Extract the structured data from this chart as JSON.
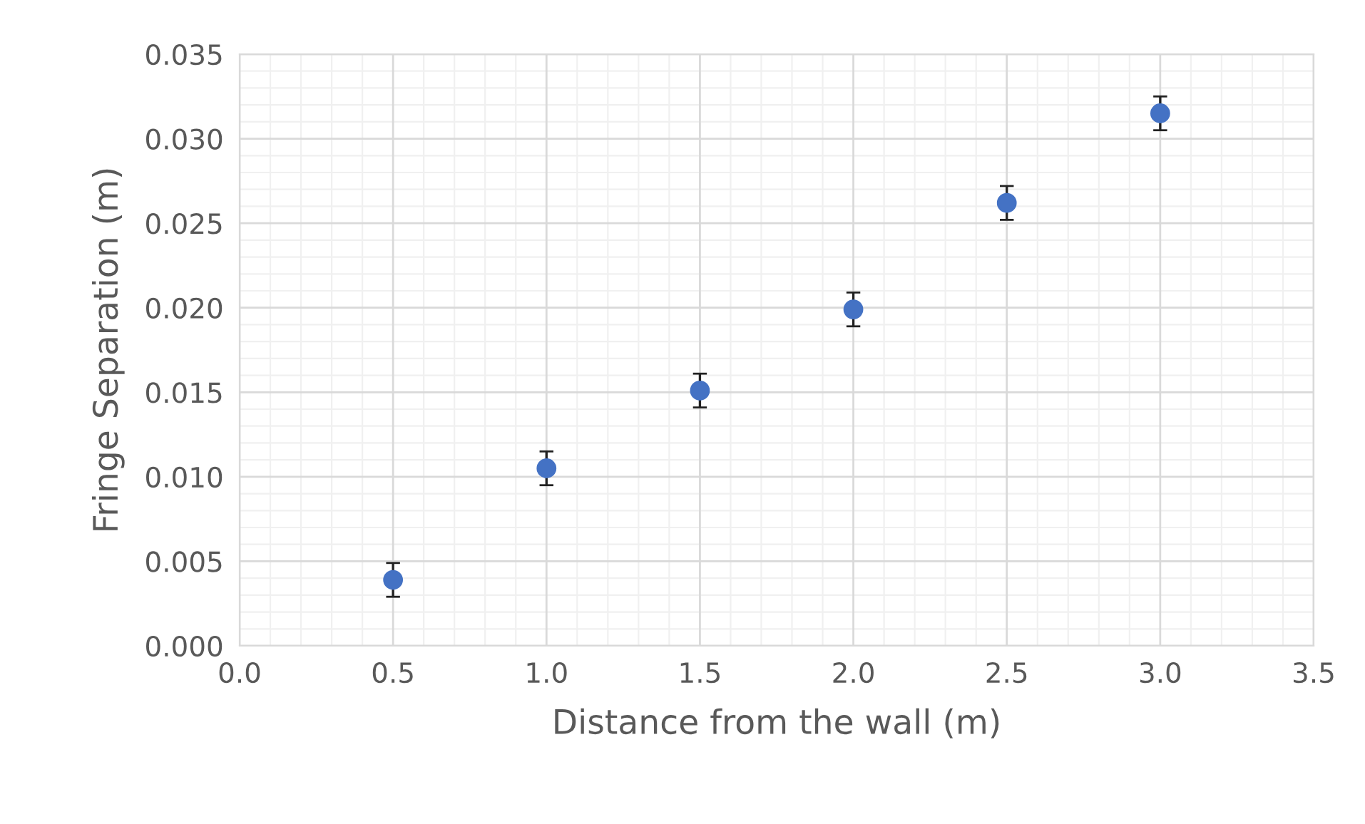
{
  "chart_data": {
    "type": "scatter",
    "xlabel": "Distance from the wall (m)",
    "ylabel": "Fringe Separation (m)",
    "x": [
      0.5,
      1.0,
      1.5,
      2.0,
      2.5,
      3.0
    ],
    "values": [
      0.0039,
      0.0105,
      0.0151,
      0.0199,
      0.0262,
      0.0315
    ],
    "errors": [
      0.001,
      0.001,
      0.001,
      0.001,
      0.001,
      0.001
    ],
    "color": "#4472c4",
    "marker": "circle",
    "xlim": [
      0.0,
      3.5
    ],
    "xticks": [
      {
        "value": 0.0,
        "label": "0.0"
      },
      {
        "value": 0.5,
        "label": "0.5"
      },
      {
        "value": 1.0,
        "label": "1.0"
      },
      {
        "value": 1.5,
        "label": "1.5"
      },
      {
        "value": 2.0,
        "label": "2.0"
      },
      {
        "value": 2.5,
        "label": "2.5"
      },
      {
        "value": 3.0,
        "label": "3.0"
      },
      {
        "value": 3.5,
        "label": "3.5"
      }
    ],
    "ylim": [
      0.0,
      0.035
    ],
    "yticks": [
      {
        "value": 0.0,
        "label": "0.000"
      },
      {
        "value": 0.005,
        "label": "0.005"
      },
      {
        "value": 0.01,
        "label": "0.010"
      },
      {
        "value": 0.015,
        "label": "0.015"
      },
      {
        "value": 0.02,
        "label": "0.020"
      },
      {
        "value": 0.025,
        "label": "0.025"
      },
      {
        "value": 0.03,
        "label": "0.030"
      },
      {
        "value": 0.035,
        "label": "0.035"
      }
    ],
    "grid": true
  }
}
